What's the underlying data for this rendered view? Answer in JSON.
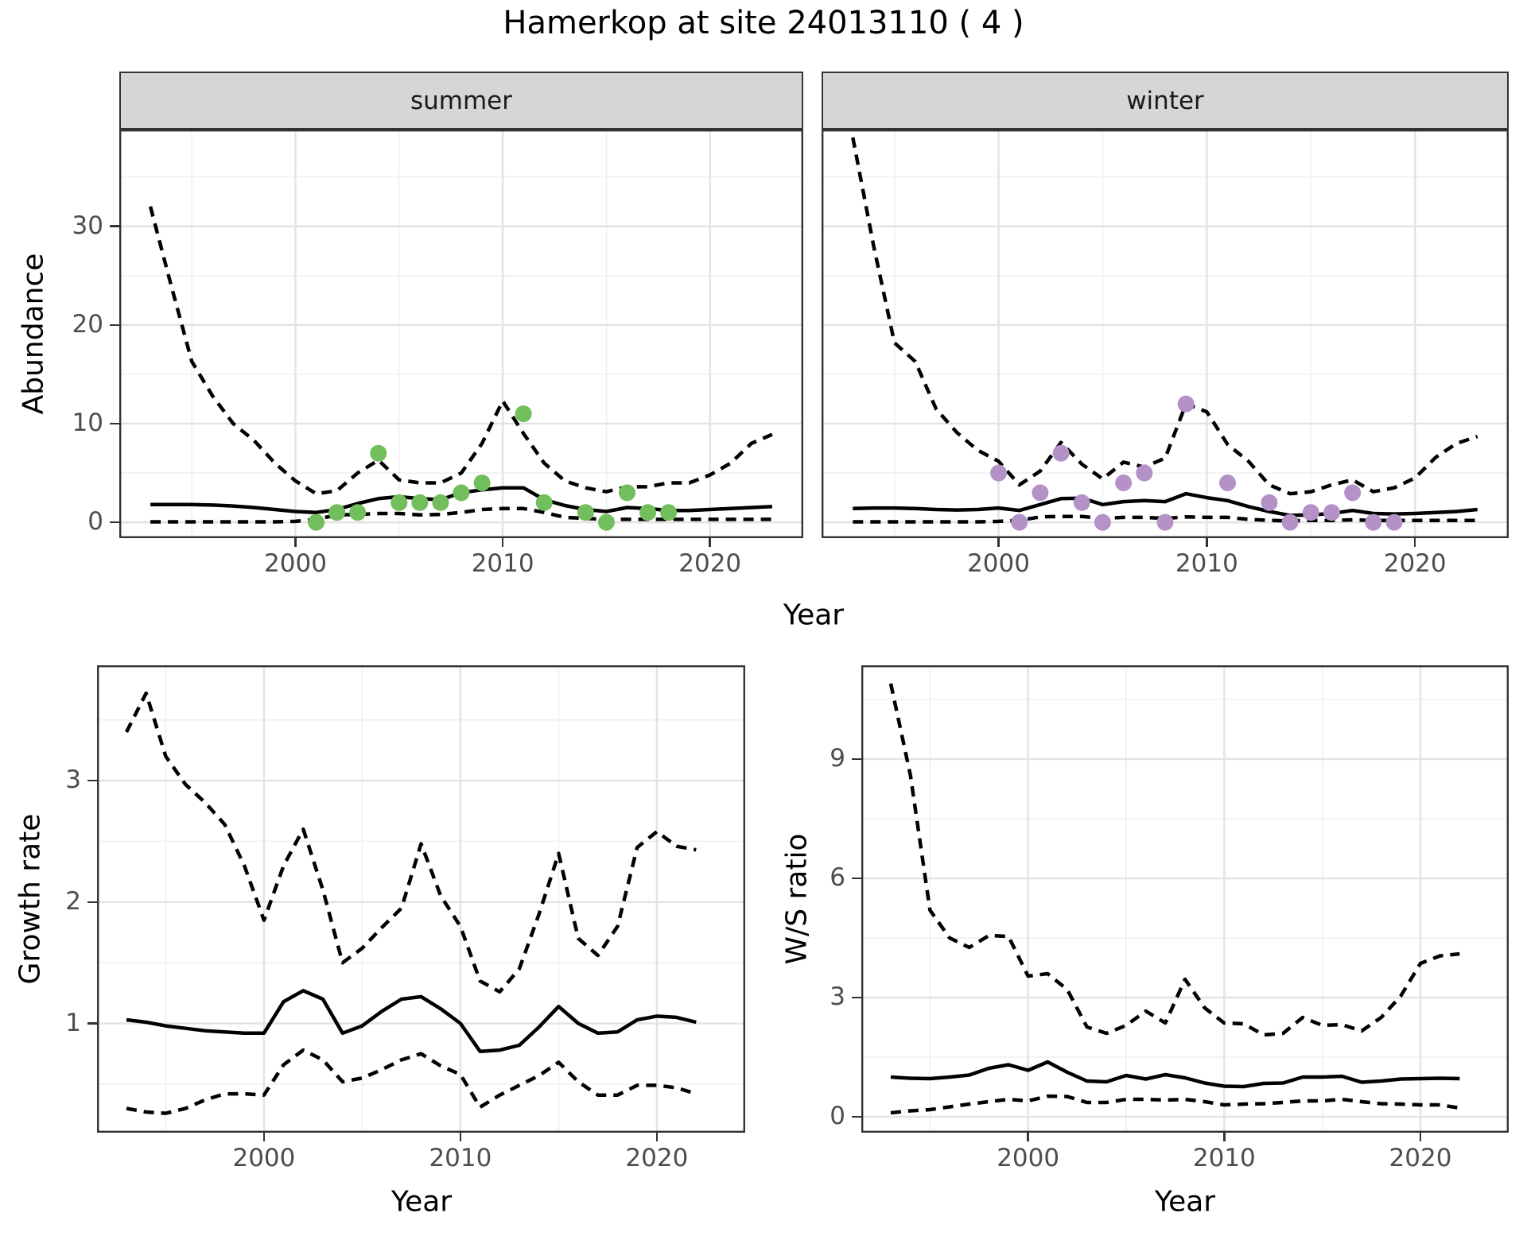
{
  "title": "Hamerkop at site 24013110 ( 4 )",
  "chart_data": {
    "type": "line",
    "description": "Seasonal abundance time series with fitted trend (solid), dashed confidence bounds, observed counts as points; plus derived growth rate and winter/summer ratio panels.",
    "line_color": "#000000",
    "ci_linetype": "dashed",
    "grid": "on",
    "legend": "none",
    "figures": [
      {
        "id": "abundance",
        "ylabel": "Abundance",
        "xlabel": "Year",
        "xticks": [
          2000,
          2010,
          2020
        ],
        "yticks": [
          0,
          10,
          20,
          30
        ],
        "xlim": [
          1991.5,
          2024.5
        ],
        "ylim": [
          -1.6,
          39.8
        ],
        "years": [
          1993,
          1994,
          1995,
          1996,
          1997,
          1998,
          1999,
          2000,
          2001,
          2002,
          2003,
          2004,
          2005,
          2006,
          2007,
          2008,
          2009,
          2010,
          2011,
          2012,
          2013,
          2014,
          2015,
          2016,
          2017,
          2018,
          2019,
          2020,
          2021,
          2022,
          2023
        ],
        "panels": [
          {
            "facet": "summer",
            "point_color": "#72bd5c",
            "series": {
              "fit": [
                1.8,
                1.8,
                1.8,
                1.75,
                1.65,
                1.5,
                1.3,
                1.1,
                1.0,
                1.3,
                1.9,
                2.4,
                2.6,
                2.4,
                2.3,
                3.0,
                3.3,
                3.5,
                3.5,
                2.3,
                1.7,
                1.3,
                1.1,
                1.5,
                1.4,
                1.2,
                1.2,
                1.3,
                1.4,
                1.5,
                1.6
              ],
              "upper": [
                32,
                24,
                16.3,
                12.8,
                10,
                8.3,
                6.0,
                4.2,
                2.9,
                3.2,
                5.0,
                6.3,
                4.3,
                4.0,
                4.0,
                5.0,
                8.0,
                12.3,
                9.0,
                6.0,
                4.2,
                3.5,
                3.1,
                3.6,
                3.6,
                4.0,
                4.0,
                4.8,
                6.0,
                8.0,
                8.9
              ],
              "lower": [
                0.05,
                0.05,
                0.05,
                0.05,
                0.05,
                0.05,
                0.05,
                0.1,
                0.3,
                0.75,
                0.8,
                0.9,
                0.9,
                0.75,
                0.8,
                1.0,
                1.3,
                1.4,
                1.4,
                1.0,
                0.5,
                0.4,
                0.3,
                0.3,
                0.3,
                0.3,
                0.3,
                0.3,
                0.3,
                0.3,
                0.3
              ],
              "obs": [
                [
                  2001,
                  0
                ],
                [
                  2002,
                  1
                ],
                [
                  2003,
                  1
                ],
                [
                  2004,
                  7
                ],
                [
                  2005,
                  2
                ],
                [
                  2006,
                  2
                ],
                [
                  2007,
                  2
                ],
                [
                  2008,
                  3
                ],
                [
                  2009,
                  4
                ],
                [
                  2011,
                  11
                ],
                [
                  2012,
                  2
                ],
                [
                  2014,
                  1
                ],
                [
                  2015,
                  0
                ],
                [
                  2016,
                  3
                ],
                [
                  2017,
                  1
                ],
                [
                  2018,
                  1
                ]
              ]
            }
          },
          {
            "facet": "winter",
            "point_color": "#b491c7",
            "series": {
              "fit": [
                1.4,
                1.45,
                1.45,
                1.4,
                1.3,
                1.25,
                1.3,
                1.45,
                1.2,
                1.8,
                2.4,
                2.45,
                1.8,
                2.1,
                2.2,
                2.1,
                2.9,
                2.5,
                2.2,
                1.6,
                1.1,
                0.7,
                0.75,
                0.9,
                1.2,
                0.9,
                0.85,
                0.9,
                1.0,
                1.1,
                1.3
              ],
              "upper": [
                39,
                28,
                18.2,
                16.3,
                11.5,
                9.1,
                7.3,
                6.2,
                3.8,
                5.2,
                8.1,
                5.9,
                4.4,
                6.1,
                5.6,
                6.5,
                12.0,
                11.2,
                7.9,
                6.2,
                3.8,
                2.9,
                3.1,
                3.8,
                4.3,
                3.1,
                3.5,
                4.5,
                6.6,
                8.0,
                8.7
              ],
              "lower": [
                0.05,
                0.05,
                0.05,
                0.05,
                0.05,
                0.05,
                0.05,
                0.1,
                0.2,
                0.55,
                0.6,
                0.6,
                0.4,
                0.5,
                0.5,
                0.4,
                0.55,
                0.5,
                0.5,
                0.3,
                0.2,
                0.15,
                0.2,
                0.2,
                0.25,
                0.2,
                0.2,
                0.2,
                0.2,
                0.2,
                0.2
              ],
              "obs": [
                [
                  2000,
                  5
                ],
                [
                  2001,
                  0
                ],
                [
                  2002,
                  3
                ],
                [
                  2003,
                  7
                ],
                [
                  2004,
                  2
                ],
                [
                  2005,
                  0
                ],
                [
                  2006,
                  4
                ],
                [
                  2007,
                  5
                ],
                [
                  2008,
                  0
                ],
                [
                  2009,
                  12
                ],
                [
                  2011,
                  4
                ],
                [
                  2013,
                  2
                ],
                [
                  2014,
                  0
                ],
                [
                  2015,
                  1
                ],
                [
                  2016,
                  1
                ],
                [
                  2017,
                  3
                ],
                [
                  2018,
                  0
                ],
                [
                  2019,
                  0
                ]
              ]
            }
          }
        ]
      },
      {
        "id": "growth",
        "ylabel": "Growth rate",
        "xlabel": "Year",
        "xticks": [
          2000,
          2010,
          2020
        ],
        "yticks": [
          1,
          2,
          3
        ],
        "xlim": [
          1991.5,
          2024.5
        ],
        "ylim": [
          0.1,
          3.95
        ],
        "years": [
          1993,
          1994,
          1995,
          1996,
          1997,
          1998,
          1999,
          2000,
          2001,
          2002,
          2003,
          2004,
          2005,
          2006,
          2007,
          2008,
          2009,
          2010,
          2011,
          2012,
          2013,
          2014,
          2015,
          2016,
          2017,
          2018,
          2019,
          2020,
          2021,
          2022
        ],
        "panels": [
          {
            "facet": null,
            "point_color": null,
            "series": {
              "fit": [
                1.03,
                1.01,
                0.98,
                0.96,
                0.94,
                0.93,
                0.92,
                0.92,
                1.18,
                1.27,
                1.2,
                0.92,
                0.98,
                1.1,
                1.2,
                1.22,
                1.12,
                1.0,
                0.77,
                0.78,
                0.82,
                0.97,
                1.14,
                1.0,
                0.92,
                0.93,
                1.03,
                1.06,
                1.05,
                1.01
              ],
              "upper": [
                3.4,
                3.72,
                3.2,
                2.97,
                2.82,
                2.64,
                2.3,
                1.85,
                2.3,
                2.6,
                2.1,
                1.5,
                1.62,
                1.79,
                1.95,
                2.48,
                2.05,
                1.8,
                1.35,
                1.26,
                1.45,
                1.9,
                2.4,
                1.7,
                1.56,
                1.8,
                2.45,
                2.58,
                2.46,
                2.43
              ],
              "lower": [
                0.3,
                0.27,
                0.26,
                0.3,
                0.37,
                0.42,
                0.42,
                0.41,
                0.66,
                0.78,
                0.7,
                0.52,
                0.55,
                0.62,
                0.7,
                0.75,
                0.65,
                0.58,
                0.31,
                0.41,
                0.49,
                0.57,
                0.68,
                0.52,
                0.41,
                0.41,
                0.49,
                0.49,
                0.47,
                0.42
              ],
              "obs": []
            }
          }
        ]
      },
      {
        "id": "ws",
        "ylabel": "W/S ratio",
        "xlabel": "Year",
        "xticks": [
          2000,
          2010,
          2020
        ],
        "yticks": [
          0,
          3,
          6,
          9
        ],
        "xlim": [
          1991.5,
          2024.5
        ],
        "ylim": [
          -0.4,
          11.36
        ],
        "years": [
          1993,
          1994,
          1995,
          1996,
          1997,
          1998,
          1999,
          2000,
          2001,
          2002,
          2003,
          2004,
          2005,
          2006,
          2007,
          2008,
          2009,
          2010,
          2011,
          2012,
          2013,
          2014,
          2015,
          2016,
          2017,
          2018,
          2019,
          2020,
          2021,
          2022
        ],
        "panels": [
          {
            "facet": null,
            "point_color": null,
            "series": {
              "fit": [
                1.0,
                0.97,
                0.96,
                1.0,
                1.05,
                1.22,
                1.31,
                1.17,
                1.38,
                1.12,
                0.9,
                0.88,
                1.04,
                0.95,
                1.06,
                0.98,
                0.85,
                0.77,
                0.76,
                0.84,
                0.85,
                1.0,
                1.0,
                1.02,
                0.87,
                0.9,
                0.95,
                0.96,
                0.97,
                0.96
              ],
              "upper": [
                10.9,
                8.6,
                5.2,
                4.5,
                4.26,
                4.56,
                4.54,
                3.54,
                3.6,
                3.2,
                2.26,
                2.1,
                2.3,
                2.66,
                2.36,
                3.46,
                2.74,
                2.36,
                2.34,
                2.06,
                2.1,
                2.5,
                2.3,
                2.32,
                2.16,
                2.5,
                3.04,
                3.86,
                4.05,
                4.1
              ],
              "lower": [
                0.1,
                0.15,
                0.18,
                0.25,
                0.32,
                0.38,
                0.44,
                0.4,
                0.52,
                0.51,
                0.36,
                0.36,
                0.44,
                0.44,
                0.42,
                0.44,
                0.38,
                0.3,
                0.32,
                0.33,
                0.36,
                0.4,
                0.4,
                0.44,
                0.38,
                0.33,
                0.32,
                0.3,
                0.3,
                0.22
              ],
              "obs": []
            }
          }
        ]
      }
    ]
  }
}
